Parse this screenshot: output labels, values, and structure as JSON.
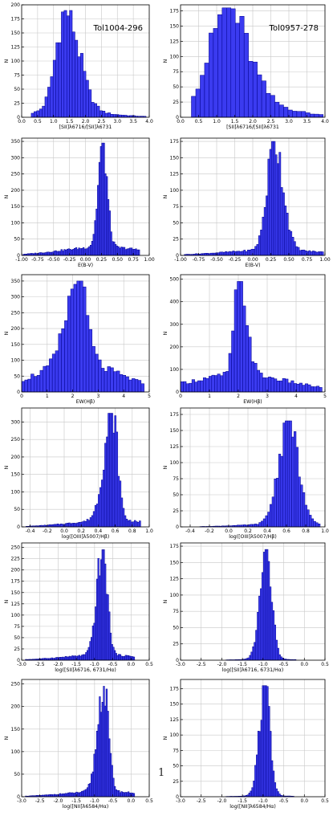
{
  "page_number": "1",
  "colors": {
    "bar_fill": "#3b3bf0",
    "bar_edge": "#00008b",
    "grid": "#c8c8c8",
    "axis": "#000000"
  },
  "chart_data": [
    {
      "type": "bar",
      "panel": "r0c0",
      "title": "Tol1004-296",
      "xlabel": "[SII]λ6716/[SII]λ6731",
      "ylabel": "N",
      "xlim": [
        0,
        4
      ],
      "ylim": [
        0,
        200
      ],
      "xticks": [
        0,
        0.5,
        1,
        1.5,
        2,
        2.5,
        3,
        3.5,
        4
      ],
      "xtick_labels": [
        "0.0",
        "0.5",
        "1.0",
        "1.5",
        "2.0",
        "2.5",
        "3.0",
        "3.5",
        "4.0"
      ],
      "yticks": [
        0,
        25,
        50,
        75,
        100,
        125,
        150,
        175,
        200
      ],
      "grid": true,
      "peak": [
        1.38,
        190
      ],
      "sd_left": 0.3,
      "sd_right": 0.42,
      "range": [
        0.3,
        3.9
      ],
      "bins": 42,
      "tail": 0.06
    },
    {
      "type": "bar",
      "panel": "r0c1",
      "title": "Tol0957-278",
      "xlabel": "[SII]λ6716/[SII]λ6731",
      "ylabel": "N",
      "xlim": [
        0,
        4
      ],
      "ylim": [
        0,
        185
      ],
      "xticks": [
        0,
        0.5,
        1,
        1.5,
        2,
        2.5,
        3,
        3.5,
        4
      ],
      "xtick_labels": [
        "0.0",
        "0.5",
        "1.0",
        "1.5",
        "2.0",
        "2.5",
        "3.0",
        "3.5",
        "4.0"
      ],
      "yticks": [
        0,
        25,
        50,
        75,
        100,
        125,
        150,
        175
      ],
      "grid": true,
      "peak": [
        1.3,
        180
      ],
      "sd_left": 0.45,
      "sd_right": 0.55,
      "range": [
        0.3,
        3.95
      ],
      "bins": 30,
      "tail": 0.22
    },
    {
      "type": "bar",
      "panel": "r1c0",
      "xlabel": "E(B-V)",
      "ylabel": "N",
      "xlim": [
        -1,
        1
      ],
      "ylim": [
        0,
        360
      ],
      "xticks": [
        -1,
        -0.75,
        -0.5,
        -0.25,
        0,
        0.25,
        0.5,
        0.75,
        1
      ],
      "xtick_labels": [
        "-1.00",
        "-0.75",
        "-0.50",
        "-0.25",
        "0.00",
        "0.25",
        "0.50",
        "0.75",
        "1.00"
      ],
      "yticks": [
        0,
        50,
        100,
        150,
        200,
        250,
        300,
        350
      ],
      "grid": true,
      "peak": [
        0.27,
        345
      ],
      "sd_left": 0.07,
      "sd_right": 0.07,
      "range": [
        -0.98,
        0.85
      ],
      "bins": 80,
      "tail": 0.08
    },
    {
      "type": "bar",
      "panel": "r1c1",
      "xlabel": "E(B-V)",
      "ylabel": "N",
      "xlim": [
        -1,
        1
      ],
      "ylim": [
        0,
        180
      ],
      "xticks": [
        -1,
        -0.75,
        -0.5,
        -0.25,
        0,
        0.25,
        0.5,
        0.75,
        1
      ],
      "xtick_labels": [
        "-1.00",
        "-0.75",
        "-0.50",
        "-0.25",
        "0.00",
        "0.25",
        "0.50",
        "0.75",
        "1.00"
      ],
      "yticks": [
        0,
        25,
        50,
        75,
        100,
        125,
        150,
        175
      ],
      "grid": true,
      "peak": [
        0.3,
        175
      ],
      "sd_left": 0.1,
      "sd_right": 0.12,
      "range": [
        -0.95,
        0.98
      ],
      "bins": 75,
      "tail": 0.05
    },
    {
      "type": "bar",
      "panel": "r2c0",
      "xlabel": "EW(Hβ)",
      "ylabel": "N",
      "xlim": [
        0,
        5
      ],
      "ylim": [
        0,
        370
      ],
      "xticks": [
        0,
        1,
        2,
        3,
        4,
        5
      ],
      "xtick_labels": [
        "0",
        "1",
        "2",
        "3",
        "4",
        "5"
      ],
      "yticks": [
        0,
        50,
        100,
        150,
        200,
        250,
        300,
        350
      ],
      "grid": true,
      "peak": [
        2.2,
        350
      ],
      "sd_left": 0.45,
      "sd_right": 0.35,
      "range": [
        0,
        4.8
      ],
      "bins": 40,
      "tail": 0.34
    },
    {
      "type": "bar",
      "panel": "r2c1",
      "xlabel": "EW(Hβ)",
      "ylabel": "N",
      "xlim": [
        0,
        5
      ],
      "ylim": [
        0,
        520
      ],
      "xticks": [
        0,
        1,
        2,
        3,
        4,
        5
      ],
      "xtick_labels": [
        "0",
        "1",
        "2",
        "3",
        "4",
        "5"
      ],
      "yticks": [
        0,
        100,
        200,
        300,
        400,
        500
      ],
      "grid": true,
      "peak": [
        2.05,
        490
      ],
      "sd_left": 0.18,
      "sd_right": 0.25,
      "range": [
        0,
        4.9
      ],
      "bins": 50,
      "tail": 0.18
    },
    {
      "type": "bar",
      "panel": "r3c0",
      "xlabel": "log([OIII]λ5007/Hβ)",
      "ylabel": "N",
      "xlim": [
        -0.5,
        1
      ],
      "ylim": [
        0,
        340
      ],
      "xticks": [
        -0.4,
        -0.2,
        0,
        0.2,
        0.4,
        0.6,
        0.8,
        1
      ],
      "xtick_labels": [
        "-0.4",
        "-0.2",
        "0.0",
        "0.2",
        "0.4",
        "0.6",
        "0.8",
        "1.0"
      ],
      "yticks": [
        0,
        50,
        100,
        150,
        200,
        250,
        300
      ],
      "grid": true,
      "peak": [
        0.57,
        325
      ],
      "sd_left": 0.1,
      "sd_right": 0.06,
      "range": [
        -0.45,
        0.9
      ],
      "bins": 70,
      "tail": 0.06
    },
    {
      "type": "bar",
      "panel": "r3c1",
      "xlabel": "log([OIII]λ5007/Hβ)",
      "ylabel": "N",
      "xlim": [
        -0.5,
        1
      ],
      "ylim": [
        0,
        185
      ],
      "xticks": [
        -0.4,
        -0.2,
        0,
        0.2,
        0.4,
        0.6,
        0.8,
        1
      ],
      "xtick_labels": [
        "-0.4",
        "-0.2",
        "0.0",
        "0.2",
        "0.4",
        "0.6",
        "0.8",
        "1.0"
      ],
      "yticks": [
        0,
        25,
        50,
        75,
        100,
        125,
        150,
        175
      ],
      "grid": true,
      "peak": [
        0.62,
        165
      ],
      "sd_left": 0.1,
      "sd_right": 0.1,
      "range": [
        -0.3,
        0.95
      ],
      "bins": 55,
      "tail": 0.03
    },
    {
      "type": "bar",
      "panel": "r4c0",
      "xlabel": "log([SII]λ6716, 6731/Hα)",
      "ylabel": "N",
      "xlim": [
        -3,
        0.5
      ],
      "ylim": [
        0,
        260
      ],
      "xticks": [
        -3,
        -2.5,
        -2,
        -1.5,
        -1,
        -0.5,
        0,
        0.5
      ],
      "xtick_labels": [
        "-3.0",
        "-2.5",
        "-2.0",
        "-1.5",
        "-1.0",
        "-0.5",
        "0.0",
        "0.5"
      ],
      "yticks": [
        0,
        25,
        50,
        75,
        100,
        125,
        150,
        175,
        200,
        225,
        250
      ],
      "grid": true,
      "peak": [
        -0.78,
        245
      ],
      "sd_left": 0.16,
      "sd_right": 0.13,
      "range": [
        -2.9,
        0.1
      ],
      "bins": 80,
      "tail": 0.05
    },
    {
      "type": "bar",
      "panel": "r4c1",
      "xlabel": "log([SII]λ6716, 6731/Hα)",
      "ylabel": "N",
      "xlim": [
        -3,
        0.5
      ],
      "ylim": [
        0,
        180
      ],
      "xticks": [
        -3,
        -2.5,
        -2,
        -1.5,
        -1,
        -0.5,
        0,
        0.5
      ],
      "xtick_labels": [
        "-3.0",
        "-2.5",
        "-2.0",
        "-1.5",
        "-1.0",
        "-0.5",
        "0.0",
        "0.5"
      ],
      "yticks": [
        0,
        25,
        50,
        75,
        100,
        125,
        150,
        175
      ],
      "grid": true,
      "peak": [
        -0.92,
        170
      ],
      "sd_left": 0.15,
      "sd_right": 0.13,
      "range": [
        -1.9,
        -0.2
      ],
      "bins": 45,
      "tail": 0.01
    },
    {
      "type": "bar",
      "panel": "r5c0",
      "xlabel": "log([NII]λ6584/Hα)",
      "ylabel": "N",
      "xlim": [
        -3,
        0.5
      ],
      "ylim": [
        0,
        260
      ],
      "xticks": [
        -3,
        -2.5,
        -2,
        -1.5,
        -1,
        -0.5,
        0,
        0.5
      ],
      "xtick_labels": [
        "-3.0",
        "-2.5",
        "-2.0",
        "-1.5",
        "-1.0",
        "-0.5",
        "0.0",
        "0.5"
      ],
      "yticks": [
        0,
        50,
        100,
        150,
        200,
        250
      ],
      "grid": true,
      "peak": [
        -0.75,
        245
      ],
      "sd_left": 0.17,
      "sd_right": 0.13,
      "range": [
        -2.9,
        0.1
      ],
      "bins": 80,
      "tail": 0.05
    },
    {
      "type": "bar",
      "panel": "r5c1",
      "xlabel": "log([NII]λ6584/Hα)",
      "ylabel": "N",
      "xlim": [
        -3,
        0.5
      ],
      "ylim": [
        0,
        190
      ],
      "xticks": [
        -3,
        -2.5,
        -2,
        -1.5,
        -1,
        -0.5,
        0,
        0.5
      ],
      "xtick_labels": [
        "-3.0",
        "-2.5",
        "-2.0",
        "-1.5",
        "-1.0",
        "-0.5",
        "0.0",
        "0.5"
      ],
      "yticks": [
        0,
        25,
        50,
        75,
        100,
        125,
        150,
        175
      ],
      "grid": true,
      "peak": [
        -0.95,
        180
      ],
      "sd_left": 0.14,
      "sd_right": 0.12,
      "range": [
        -1.9,
        -0.25
      ],
      "bins": 45,
      "tail": 0.01
    }
  ]
}
